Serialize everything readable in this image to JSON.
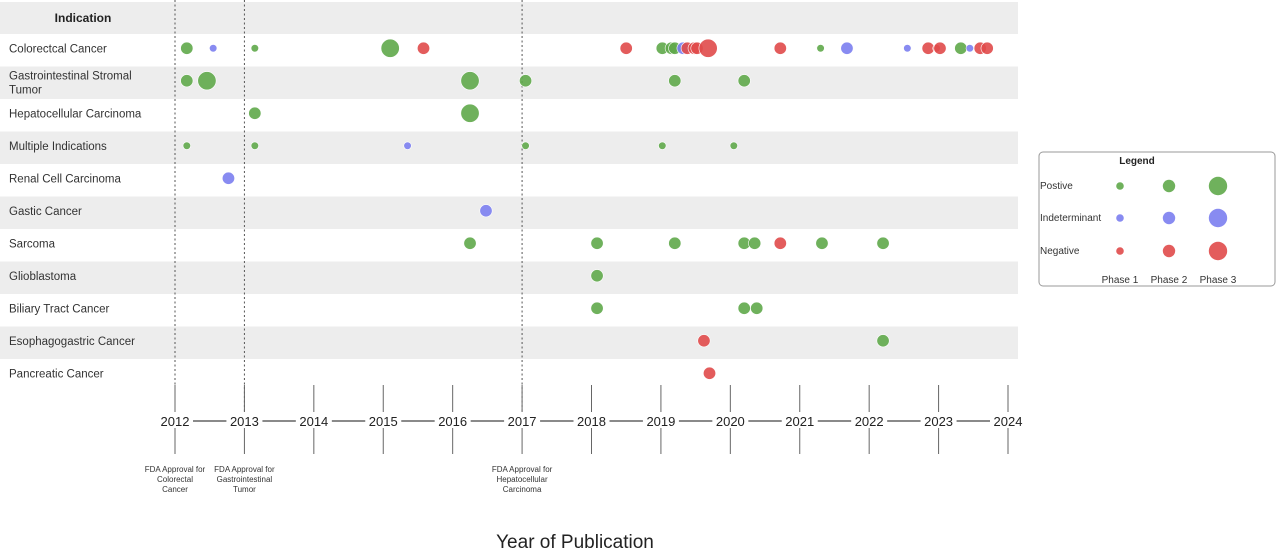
{
  "chart_data": {
    "type": "scatter",
    "subtype": "bubble-timeline",
    "row_header": "Indication",
    "xlabel": "Year of Publication",
    "x_ticks": [
      "2012",
      "2013",
      "2014",
      "2015",
      "2016",
      "2017",
      "2018",
      "2019",
      "2020",
      "2021",
      "2022",
      "2023",
      "2024"
    ],
    "xlim": [
      2012,
      2024
    ],
    "rows": [
      "Colorectcal Cancer",
      [
        "Gastrointestinal Stromal",
        "Tumor"
      ],
      "Hepatocellular Carcinoma",
      "Multiple Indications",
      "Renal Cell Carcinoma",
      "Gastic Cancer",
      "Sarcoma",
      "Glioblastoma",
      "Biliary Tract Cancer",
      "Esophagogastric Cancer",
      "Pancreatic Cancer"
    ],
    "milestones": [
      {
        "year": 2012.0,
        "lines": [
          "FDA Approval for",
          "Colorectal",
          "Cancer"
        ]
      },
      {
        "year": 2013.0,
        "lines": [
          "FDA Approval for",
          "Gastrointestinal",
          "Tumor"
        ]
      },
      {
        "year": 2017.0,
        "lines": [
          "FDA Approval for",
          "Hepatocellular",
          "Carcinoma"
        ]
      }
    ],
    "colors": {
      "Postive": "#5fa84a",
      "Indeterminant": "#7b7ef0",
      "Negative": "#e04a4a"
    },
    "legend": {
      "title": "Legend",
      "outcomes": [
        "Postive",
        "Indeterminant",
        "Negative"
      ],
      "phases": [
        "Phase 1",
        "Phase 2",
        "Phase 3"
      ]
    },
    "points": [
      {
        "row": 0,
        "x": 2012.17,
        "outcome": "Postive",
        "phase": 2
      },
      {
        "row": 0,
        "x": 2012.55,
        "outcome": "Indeterminant",
        "phase": 1
      },
      {
        "row": 0,
        "x": 2013.15,
        "outcome": "Postive",
        "phase": 1
      },
      {
        "row": 0,
        "x": 2015.1,
        "outcome": "Postive",
        "phase": 3
      },
      {
        "row": 0,
        "x": 2015.58,
        "outcome": "Negative",
        "phase": 2
      },
      {
        "row": 0,
        "x": 2018.5,
        "outcome": "Negative",
        "phase": 2
      },
      {
        "row": 0,
        "x": 2019.02,
        "outcome": "Postive",
        "phase": 2
      },
      {
        "row": 0,
        "x": 2019.15,
        "outcome": "Postive",
        "phase": 2
      },
      {
        "row": 0,
        "x": 2019.2,
        "outcome": "Postive",
        "phase": 2
      },
      {
        "row": 0,
        "x": 2019.32,
        "outcome": "Indeterminant",
        "phase": 2
      },
      {
        "row": 0,
        "x": 2019.38,
        "outcome": "Negative",
        "phase": 2
      },
      {
        "row": 0,
        "x": 2019.48,
        "outcome": "Negative",
        "phase": 2
      },
      {
        "row": 0,
        "x": 2019.52,
        "outcome": "Negative",
        "phase": 2
      },
      {
        "row": 0,
        "x": 2019.68,
        "outcome": "Negative",
        "phase": 3
      },
      {
        "row": 0,
        "x": 2020.72,
        "outcome": "Negative",
        "phase": 2
      },
      {
        "row": 0,
        "x": 2021.3,
        "outcome": "Postive",
        "phase": 1
      },
      {
        "row": 0,
        "x": 2021.68,
        "outcome": "Indeterminant",
        "phase": 2
      },
      {
        "row": 0,
        "x": 2022.55,
        "outcome": "Indeterminant",
        "phase": 1
      },
      {
        "row": 0,
        "x": 2022.85,
        "outcome": "Negative",
        "phase": 2
      },
      {
        "row": 0,
        "x": 2022.97,
        "outcome": "Negative",
        "phase": 1
      },
      {
        "row": 0,
        "x": 2023.02,
        "outcome": "Negative",
        "phase": 2
      },
      {
        "row": 0,
        "x": 2023.32,
        "outcome": "Postive",
        "phase": 2
      },
      {
        "row": 0,
        "x": 2023.45,
        "outcome": "Indeterminant",
        "phase": 1
      },
      {
        "row": 0,
        "x": 2023.6,
        "outcome": "Negative",
        "phase": 2
      },
      {
        "row": 0,
        "x": 2023.7,
        "outcome": "Negative",
        "phase": 2
      },
      {
        "row": 1,
        "x": 2012.17,
        "outcome": "Postive",
        "phase": 2
      },
      {
        "row": 1,
        "x": 2012.46,
        "outcome": "Postive",
        "phase": 3
      },
      {
        "row": 1,
        "x": 2016.25,
        "outcome": "Postive",
        "phase": 3
      },
      {
        "row": 1,
        "x": 2017.05,
        "outcome": "Postive",
        "phase": 2
      },
      {
        "row": 1,
        "x": 2019.2,
        "outcome": "Postive",
        "phase": 2
      },
      {
        "row": 1,
        "x": 2020.2,
        "outcome": "Postive",
        "phase": 2
      },
      {
        "row": 2,
        "x": 2013.15,
        "outcome": "Postive",
        "phase": 2
      },
      {
        "row": 2,
        "x": 2016.25,
        "outcome": "Postive",
        "phase": 3
      },
      {
        "row": 3,
        "x": 2012.17,
        "outcome": "Postive",
        "phase": 1
      },
      {
        "row": 3,
        "x": 2013.15,
        "outcome": "Postive",
        "phase": 1
      },
      {
        "row": 3,
        "x": 2015.35,
        "outcome": "Indeterminant",
        "phase": 1
      },
      {
        "row": 3,
        "x": 2017.05,
        "outcome": "Postive",
        "phase": 1
      },
      {
        "row": 3,
        "x": 2019.02,
        "outcome": "Postive",
        "phase": 1
      },
      {
        "row": 3,
        "x": 2020.05,
        "outcome": "Postive",
        "phase": 1
      },
      {
        "row": 4,
        "x": 2012.77,
        "outcome": "Indeterminant",
        "phase": 2
      },
      {
        "row": 5,
        "x": 2016.48,
        "outcome": "Indeterminant",
        "phase": 2
      },
      {
        "row": 6,
        "x": 2016.25,
        "outcome": "Postive",
        "phase": 2
      },
      {
        "row": 6,
        "x": 2018.08,
        "outcome": "Postive",
        "phase": 2
      },
      {
        "row": 6,
        "x": 2019.2,
        "outcome": "Postive",
        "phase": 2
      },
      {
        "row": 6,
        "x": 2020.2,
        "outcome": "Postive",
        "phase": 2
      },
      {
        "row": 6,
        "x": 2020.35,
        "outcome": "Postive",
        "phase": 2
      },
      {
        "row": 6,
        "x": 2020.72,
        "outcome": "Negative",
        "phase": 2
      },
      {
        "row": 6,
        "x": 2021.32,
        "outcome": "Postive",
        "phase": 2
      },
      {
        "row": 6,
        "x": 2022.2,
        "outcome": "Postive",
        "phase": 2
      },
      {
        "row": 7,
        "x": 2018.08,
        "outcome": "Postive",
        "phase": 2
      },
      {
        "row": 8,
        "x": 2018.08,
        "outcome": "Postive",
        "phase": 2
      },
      {
        "row": 8,
        "x": 2020.2,
        "outcome": "Postive",
        "phase": 2
      },
      {
        "row": 8,
        "x": 2020.38,
        "outcome": "Postive",
        "phase": 2
      },
      {
        "row": 9,
        "x": 2019.62,
        "outcome": "Negative",
        "phase": 2
      },
      {
        "row": 9,
        "x": 2022.2,
        "outcome": "Postive",
        "phase": 2
      },
      {
        "row": 10,
        "x": 2019.7,
        "outcome": "Negative",
        "phase": 2
      }
    ]
  }
}
